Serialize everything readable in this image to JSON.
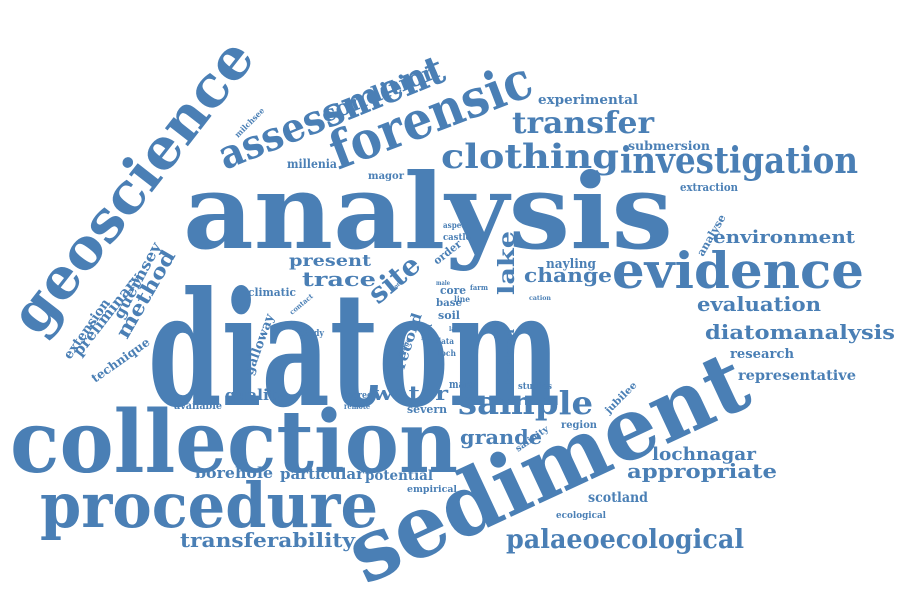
{
  "color": "#4a7fb5",
  "words": {
    "diatom": "diatom",
    "analysis": "analysis",
    "sediment": "sediment",
    "collection": "collection",
    "procedure": "procedure",
    "geoscience": "geoscience",
    "forensic": "forensic",
    "assessment": "assessment",
    "evidence": "evidence",
    "investigation": "investigation",
    "clothing": "clothing",
    "transfer": "transfer",
    "condition": "condition",
    "sample": "sample",
    "environment": "environment",
    "change": "change",
    "evaluation": "evaluation",
    "diatomanalysis": "diatomanalysis",
    "palaeoecological": "palaeoecological",
    "appropriate": "appropriate",
    "water": "water",
    "site": "site",
    "trace": "trace",
    "present": "present",
    "method": "method",
    "grande": "grande",
    "lake": "lake",
    "transferability": "transferability",
    "lochnagar": "lochnagar",
    "scotland": "scotland",
    "potential": "potential",
    "particular": "particular",
    "borehole": "borehole",
    "quality": "quality",
    "research": "research",
    "representative": "representative",
    "experimental": "experimental",
    "submersion": "submersion",
    "extraction": "extraction",
    "analyse": "analyse",
    "guernsey": "guernsey",
    "preliminary": "preliminary",
    "extension": "extension",
    "technique": "technique",
    "galloway": "galloway",
    "record": "record",
    "harland": "harland",
    "nayling": "nayling",
    "millenia": "millenia",
    "magor": "magor",
    "climatic": "climatic",
    "severn": "severn",
    "region": "region",
    "salinity": "salinity",
    "jubilee": "jubilee",
    "empirical": "empirical",
    "ecological": "ecological",
    "mare": "mare",
    "studies": "studies",
    "available": "available",
    "degree": "degree",
    "remote": "remote",
    "study": "study",
    "contact": "contact",
    "milchsee": "milchsee",
    "aspect": "aspect",
    "castle": "castle",
    "order": "order",
    "core": "core",
    "base": "base",
    "soil": "soil",
    "data": "data",
    "loch": "loch",
    "line": "line",
    "farm": "farm",
    "male": "male",
    "work": "work",
    "value": "value",
    "most": "most",
    "range": "range",
    "last": "last",
    "good": "good",
    "cation": "cation"
  }
}
